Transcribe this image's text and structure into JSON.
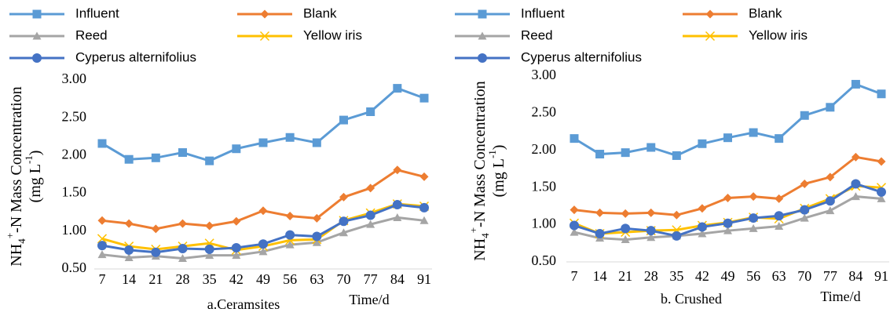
{
  "chart_data": [
    {
      "type": "line",
      "subtitle": "a.Ceramsites",
      "xlabel": "Time/d",
      "ylabel": [
        [
          "NH",
          "4",
          "+",
          "-N Mass Concentration"
        ],
        [
          "(mg L",
          "-1",
          ")"
        ]
      ],
      "categories": [
        "7",
        "14",
        "21",
        "28",
        "35",
        "42",
        "49",
        "56",
        "63",
        "70",
        "77",
        "84",
        "91"
      ],
      "ylim": [
        0.5,
        3
      ],
      "yticks": [
        {
          "value": 0.5,
          "label": "0.50"
        },
        {
          "value": 1,
          "label": "1.00"
        },
        {
          "value": 1.5,
          "label": "1.50"
        },
        {
          "value": 2,
          "label": "2.00"
        },
        {
          "value": 2.5,
          "label": "2.50"
        },
        {
          "value": 3,
          "label": "3.00"
        }
      ],
      "series": [
        {
          "name": "Influent",
          "color": "#5b9bd5",
          "marker": "square",
          "values": [
            2.16,
            1.95,
            1.97,
            2.04,
            1.93,
            2.09,
            2.17,
            2.24,
            2.17,
            2.47,
            2.58,
            2.89,
            2.76
          ]
        },
        {
          "name": "Blank",
          "color": "#ed7d31",
          "marker": "diamond",
          "values": [
            1.14,
            1.1,
            1.03,
            1.1,
            1.07,
            1.13,
            1.27,
            1.2,
            1.17,
            1.45,
            1.57,
            1.81,
            1.72
          ]
        },
        {
          "name": "Reed",
          "color": "#a5a5a5",
          "marker": "triangle",
          "values": [
            0.69,
            0.65,
            0.67,
            0.64,
            0.68,
            0.68,
            0.73,
            0.82,
            0.85,
            0.98,
            1.09,
            1.18,
            1.14
          ]
        },
        {
          "name": "Yellow iris",
          "color": "#ffc000",
          "marker": "x",
          "values": [
            0.9,
            0.8,
            0.76,
            0.8,
            0.84,
            0.75,
            0.8,
            0.88,
            0.89,
            1.14,
            1.24,
            1.36,
            1.33
          ]
        },
        {
          "name": "Cyperus alternifolius",
          "color": "#4472c4",
          "marker": "circle",
          "values": [
            0.81,
            0.75,
            0.72,
            0.77,
            0.76,
            0.78,
            0.83,
            0.95,
            0.93,
            1.13,
            1.21,
            1.35,
            1.31
          ]
        }
      ]
    },
    {
      "type": "line",
      "subtitle": "b. Crushed",
      "xlabel": "Time/d",
      "ylabel": [
        [
          "NH",
          "4",
          "+",
          "-N Mass Concentration"
        ],
        [
          "(mg L",
          "-1",
          ")"
        ]
      ],
      "categories": [
        "7",
        "14",
        "21",
        "28",
        "35",
        "42",
        "49",
        "56",
        "63",
        "70",
        "77",
        "84",
        "91"
      ],
      "ylim": [
        0.5,
        3
      ],
      "yticks": [
        {
          "value": 0.5,
          "label": "0.50"
        },
        {
          "value": 1,
          "label": "1.00"
        },
        {
          "value": 1.5,
          "label": "1.50"
        },
        {
          "value": 2,
          "label": "2.00"
        },
        {
          "value": 2.5,
          "label": "2.50"
        },
        {
          "value": 3,
          "label": "3.00"
        }
      ],
      "series": [
        {
          "name": "Influent",
          "color": "#5b9bd5",
          "marker": "square",
          "values": [
            2.16,
            1.95,
            1.97,
            2.04,
            1.93,
            2.09,
            2.17,
            2.24,
            2.16,
            2.47,
            2.58,
            2.89,
            2.76
          ]
        },
        {
          "name": "Blank",
          "color": "#ed7d31",
          "marker": "diamond",
          "values": [
            1.2,
            1.16,
            1.15,
            1.16,
            1.13,
            1.22,
            1.36,
            1.38,
            1.35,
            1.55,
            1.64,
            1.91,
            1.85
          ]
        },
        {
          "name": "Reed",
          "color": "#a5a5a5",
          "marker": "triangle",
          "values": [
            0.9,
            0.82,
            0.8,
            0.83,
            0.85,
            0.88,
            0.92,
            0.95,
            0.98,
            1.09,
            1.19,
            1.38,
            1.35
          ]
        },
        {
          "name": "Yellow iris",
          "color": "#ffc000",
          "marker": "x",
          "values": [
            1.02,
            0.88,
            0.9,
            0.92,
            0.93,
            0.99,
            1.03,
            1.1,
            1.08,
            1.22,
            1.35,
            1.52,
            1.5
          ]
        },
        {
          "name": "Cyperus alternifolius",
          "color": "#4472c4",
          "marker": "circle",
          "values": [
            0.99,
            0.88,
            0.95,
            0.92,
            0.85,
            0.97,
            1.02,
            1.09,
            1.12,
            1.2,
            1.32,
            1.55,
            1.44
          ]
        }
      ]
    }
  ]
}
